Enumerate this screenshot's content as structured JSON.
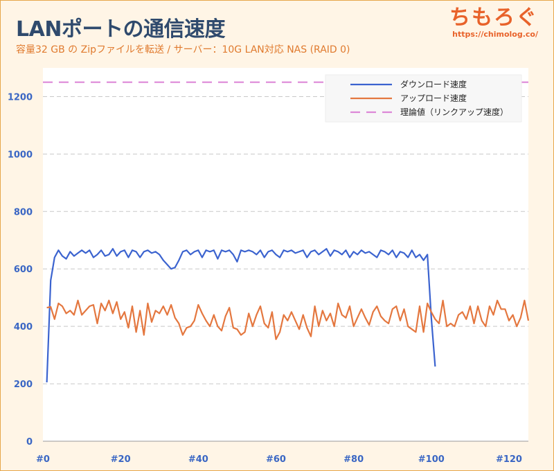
{
  "title": "LANポートの通信速度",
  "subtitle": "容量32 GB の Zipファイルを転送 / サーバー：10G LAN対応 NAS (RAID 0)",
  "brand": {
    "name": "ちもろぐ",
    "url": "https://chimolog.co/"
  },
  "colors": {
    "download": "#3b63cf",
    "upload": "#e4773f",
    "theory": "#dd88d8",
    "grid": "#c8c8c8",
    "axis_text": "#3a66c4",
    "background": "#fff5e6"
  },
  "chart_data": {
    "type": "line",
    "title": "LANポートの通信速度",
    "xlabel": "",
    "ylabel": "",
    "xlim": [
      0,
      125
    ],
    "ylim": [
      0,
      1300
    ],
    "yticks": [
      0,
      200,
      400,
      600,
      800,
      1000,
      1200
    ],
    "yticklabels": [
      "0",
      "200",
      "400",
      "600",
      "800",
      "1000",
      "1200"
    ],
    "xticks": [
      0,
      20,
      40,
      60,
      80,
      100,
      120
    ],
    "xticklabels": [
      "#0",
      "#20",
      "#40",
      "#60",
      "#80",
      "#100",
      "#120"
    ],
    "grid": "horizontal dashed",
    "legend_position": "top-right",
    "series": [
      {
        "name": "ダウンロード速度",
        "style": "solid",
        "x": [
          1,
          2,
          3,
          4,
          5,
          6,
          7,
          8,
          9,
          10,
          11,
          12,
          13,
          14,
          15,
          16,
          17,
          18,
          19,
          20,
          21,
          22,
          23,
          24,
          25,
          26,
          27,
          28,
          29,
          30,
          31,
          32,
          33,
          34,
          35,
          36,
          37,
          38,
          39,
          40,
          41,
          42,
          43,
          44,
          45,
          46,
          47,
          48,
          49,
          50,
          51,
          52,
          53,
          54,
          55,
          56,
          57,
          58,
          59,
          60,
          61,
          62,
          63,
          64,
          65,
          66,
          67,
          68,
          69,
          70,
          71,
          72,
          73,
          74,
          75,
          76,
          77,
          78,
          79,
          80,
          81,
          82,
          83,
          84,
          85,
          86,
          87,
          88,
          89,
          90,
          91,
          92,
          93,
          94,
          95,
          96,
          97,
          98,
          99,
          100,
          101
        ],
        "y": [
          205,
          560,
          640,
          665,
          645,
          635,
          660,
          645,
          655,
          665,
          655,
          665,
          640,
          650,
          665,
          645,
          650,
          670,
          645,
          660,
          665,
          640,
          665,
          660,
          640,
          660,
          665,
          655,
          660,
          650,
          630,
          615,
          600,
          605,
          630,
          660,
          665,
          650,
          660,
          665,
          640,
          665,
          660,
          665,
          635,
          665,
          660,
          665,
          650,
          625,
          665,
          660,
          665,
          660,
          650,
          665,
          640,
          660,
          665,
          650,
          640,
          665,
          660,
          665,
          655,
          660,
          665,
          640,
          660,
          665,
          650,
          660,
          670,
          645,
          665,
          660,
          650,
          665,
          640,
          660,
          650,
          665,
          655,
          660,
          650,
          640,
          665,
          660,
          650,
          665,
          640,
          660,
          655,
          640,
          665,
          640,
          650,
          630,
          650,
          430,
          260
        ]
      },
      {
        "name": "アップロード速度",
        "style": "solid",
        "x": [
          1,
          2,
          3,
          4,
          5,
          6,
          7,
          8,
          9,
          10,
          11,
          12,
          13,
          14,
          15,
          16,
          17,
          18,
          19,
          20,
          21,
          22,
          23,
          24,
          25,
          26,
          27,
          28,
          29,
          30,
          31,
          32,
          33,
          34,
          35,
          36,
          37,
          38,
          39,
          40,
          41,
          42,
          43,
          44,
          45,
          46,
          47,
          48,
          49,
          50,
          51,
          52,
          53,
          54,
          55,
          56,
          57,
          58,
          59,
          60,
          61,
          62,
          63,
          64,
          65,
          66,
          67,
          68,
          69,
          70,
          71,
          72,
          73,
          74,
          75,
          76,
          77,
          78,
          79,
          80,
          81,
          82,
          83,
          84,
          85,
          86,
          87,
          88,
          89,
          90,
          91,
          92,
          93,
          94,
          95,
          96,
          97,
          98,
          99,
          100,
          101,
          102,
          103,
          104,
          105,
          106,
          107,
          108,
          109,
          110,
          111,
          112,
          113,
          114,
          115,
          116,
          117,
          118,
          119,
          120,
          121,
          122,
          123,
          124,
          125
        ],
        "y": [
          465,
          468,
          425,
          480,
          470,
          445,
          455,
          440,
          490,
          440,
          455,
          470,
          475,
          410,
          480,
          455,
          490,
          445,
          485,
          425,
          450,
          395,
          470,
          380,
          455,
          370,
          480,
          415,
          455,
          445,
          470,
          440,
          475,
          430,
          410,
          370,
          395,
          400,
          420,
          475,
          445,
          420,
          400,
          440,
          400,
          385,
          435,
          465,
          395,
          390,
          370,
          380,
          445,
          400,
          440,
          470,
          410,
          395,
          450,
          355,
          380,
          440,
          420,
          450,
          420,
          390,
          440,
          395,
          365,
          470,
          400,
          455,
          420,
          445,
          400,
          480,
          440,
          430,
          470,
          400,
          430,
          460,
          430,
          405,
          450,
          470,
          435,
          420,
          410,
          460,
          470,
          420,
          460,
          400,
          390,
          380,
          470,
          380,
          480,
          450,
          425,
          410,
          490,
          400,
          410,
          400,
          440,
          450,
          425,
          470,
          410,
          470,
          420,
          400,
          470,
          440,
          490,
          460,
          460,
          420,
          440,
          400,
          430,
          490,
          420
        ]
      },
      {
        "name": "理論値（リンクアップ速度）",
        "style": "dashed",
        "x": [
          0,
          125
        ],
        "y": [
          1250,
          1250
        ]
      }
    ]
  }
}
